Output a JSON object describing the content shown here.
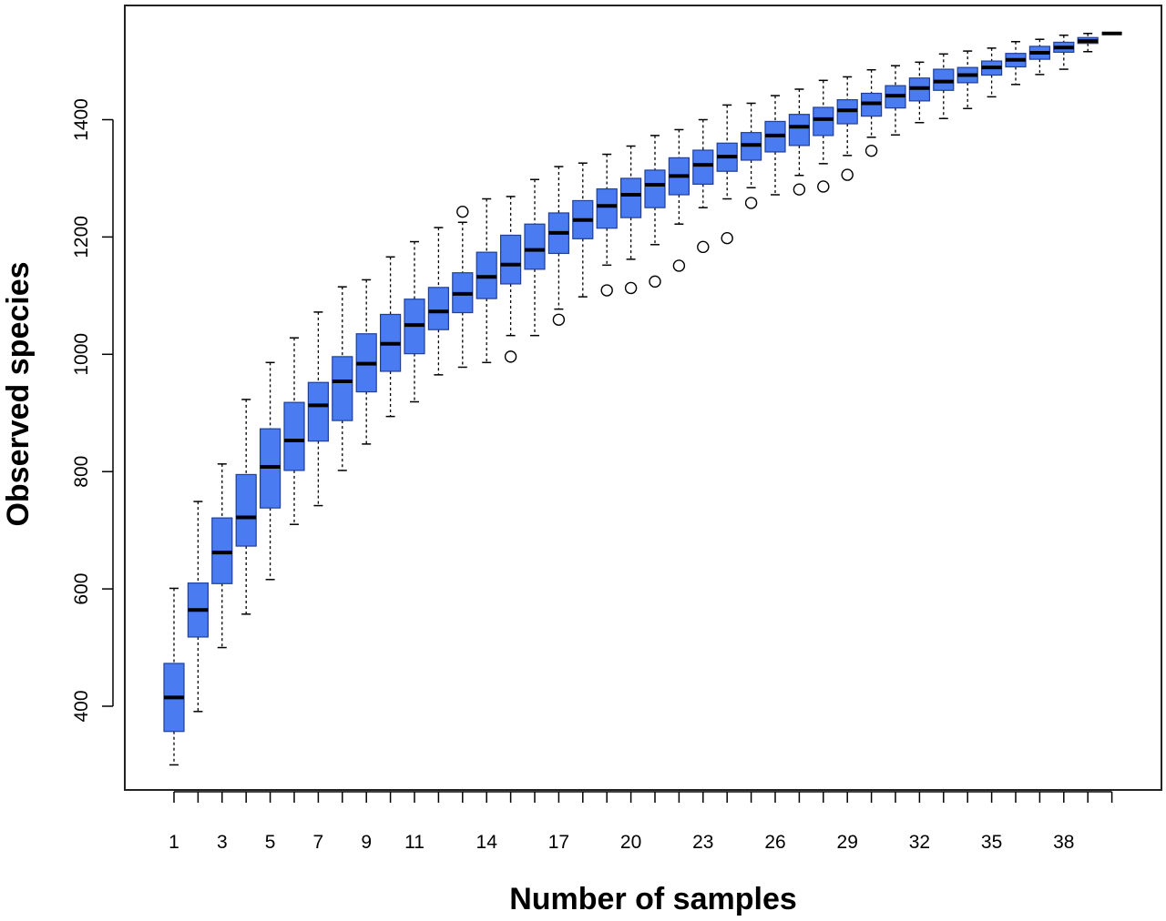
{
  "chart_data": {
    "type": "boxplot",
    "title": "",
    "xlabel": "Number of samples",
    "ylabel": "Observed species",
    "ylim": [
      265,
      1570
    ],
    "x_tick_labels": [
      "1",
      "3",
      "5",
      "7",
      "9",
      "11",
      "14",
      "17",
      "20",
      "23",
      "26",
      "29",
      "32",
      "35",
      "38"
    ],
    "y_tick_labels": [
      "400",
      "600",
      "800",
      "1000",
      "1200",
      "1400"
    ],
    "box_fill": "#4a7bf0",
    "box_stroke": "#1f3f9a",
    "grid": false,
    "legend": "none",
    "boxes": [
      {
        "x": 1,
        "low": 300,
        "q1": 357,
        "median": 415,
        "q3": 473,
        "high": 601,
        "outliers": []
      },
      {
        "x": 2,
        "low": 391,
        "q1": 518,
        "median": 564,
        "q3": 610,
        "high": 749,
        "outliers": []
      },
      {
        "x": 3,
        "low": 500,
        "q1": 609,
        "median": 662,
        "q3": 721,
        "high": 813,
        "outliers": []
      },
      {
        "x": 4,
        "low": 557,
        "q1": 673,
        "median": 722,
        "q3": 795,
        "high": 923,
        "outliers": []
      },
      {
        "x": 5,
        "low": 616,
        "q1": 738,
        "median": 808,
        "q3": 873,
        "high": 986,
        "outliers": []
      },
      {
        "x": 6,
        "low": 710,
        "q1": 802,
        "median": 853,
        "q3": 918,
        "high": 1028,
        "outliers": []
      },
      {
        "x": 7,
        "low": 742,
        "q1": 852,
        "median": 913,
        "q3": 952,
        "high": 1072,
        "outliers": []
      },
      {
        "x": 8,
        "low": 802,
        "q1": 887,
        "median": 954,
        "q3": 996,
        "high": 1115,
        "outliers": []
      },
      {
        "x": 9,
        "low": 847,
        "q1": 936,
        "median": 984,
        "q3": 1035,
        "high": 1127,
        "outliers": []
      },
      {
        "x": 10,
        "low": 894,
        "q1": 971,
        "median": 1018,
        "q3": 1068,
        "high": 1166,
        "outliers": []
      },
      {
        "x": 11,
        "low": 919,
        "q1": 1001,
        "median": 1050,
        "q3": 1094,
        "high": 1192,
        "outliers": []
      },
      {
        "x": 12,
        "low": 965,
        "q1": 1042,
        "median": 1073,
        "q3": 1114,
        "high": 1216,
        "outliers": []
      },
      {
        "x": 13,
        "low": 978,
        "q1": 1071,
        "median": 1103,
        "q3": 1139,
        "high": 1225,
        "outliers": [
          1243
        ]
      },
      {
        "x": 14,
        "low": 986,
        "q1": 1095,
        "median": 1132,
        "q3": 1174,
        "high": 1265,
        "outliers": []
      },
      {
        "x": 15,
        "low": 1032,
        "q1": 1120,
        "median": 1153,
        "q3": 1203,
        "high": 1269,
        "outliers": [
          996
        ]
      },
      {
        "x": 16,
        "low": 1032,
        "q1": 1145,
        "median": 1178,
        "q3": 1222,
        "high": 1298,
        "outliers": []
      },
      {
        "x": 17,
        "low": 1077,
        "q1": 1172,
        "median": 1207,
        "q3": 1241,
        "high": 1320,
        "outliers": [
          1059
        ]
      },
      {
        "x": 18,
        "low": 1098,
        "q1": 1197,
        "median": 1229,
        "q3": 1262,
        "high": 1326,
        "outliers": []
      },
      {
        "x": 19,
        "low": 1152,
        "q1": 1215,
        "median": 1253,
        "q3": 1282,
        "high": 1341,
        "outliers": [
          1109
        ]
      },
      {
        "x": 20,
        "low": 1162,
        "q1": 1233,
        "median": 1272,
        "q3": 1300,
        "high": 1355,
        "outliers": [
          1113
        ]
      },
      {
        "x": 21,
        "low": 1187,
        "q1": 1250,
        "median": 1289,
        "q3": 1314,
        "high": 1373,
        "outliers": [
          1124
        ]
      },
      {
        "x": 22,
        "low": 1222,
        "q1": 1272,
        "median": 1304,
        "q3": 1335,
        "high": 1383,
        "outliers": [
          1151
        ]
      },
      {
        "x": 23,
        "low": 1250,
        "q1": 1290,
        "median": 1323,
        "q3": 1348,
        "high": 1400,
        "outliers": [
          1183
        ]
      },
      {
        "x": 24,
        "low": 1265,
        "q1": 1312,
        "median": 1337,
        "q3": 1360,
        "high": 1425,
        "outliers": [
          1198
        ]
      },
      {
        "x": 25,
        "low": 1284,
        "q1": 1331,
        "median": 1357,
        "q3": 1378,
        "high": 1428,
        "outliers": [
          1258
        ]
      },
      {
        "x": 26,
        "low": 1272,
        "q1": 1345,
        "median": 1373,
        "q3": 1397,
        "high": 1441,
        "outliers": []
      },
      {
        "x": 27,
        "low": 1305,
        "q1": 1356,
        "median": 1388,
        "q3": 1409,
        "high": 1452,
        "outliers": [
          1281
        ]
      },
      {
        "x": 28,
        "low": 1325,
        "q1": 1373,
        "median": 1401,
        "q3": 1421,
        "high": 1467,
        "outliers": [
          1286
        ]
      },
      {
        "x": 29,
        "low": 1339,
        "q1": 1393,
        "median": 1416,
        "q3": 1434,
        "high": 1473,
        "outliers": [
          1306
        ]
      },
      {
        "x": 30,
        "low": 1370,
        "q1": 1406,
        "median": 1428,
        "q3": 1445,
        "high": 1485,
        "outliers": [
          1347
        ]
      },
      {
        "x": 31,
        "low": 1374,
        "q1": 1420,
        "median": 1441,
        "q3": 1458,
        "high": 1492,
        "outliers": []
      },
      {
        "x": 32,
        "low": 1395,
        "q1": 1432,
        "median": 1454,
        "q3": 1471,
        "high": 1498,
        "outliers": []
      },
      {
        "x": 33,
        "low": 1402,
        "q1": 1450,
        "median": 1465,
        "q3": 1486,
        "high": 1512,
        "outliers": []
      },
      {
        "x": 34,
        "low": 1419,
        "q1": 1463,
        "median": 1476,
        "q3": 1489,
        "high": 1517,
        "outliers": []
      },
      {
        "x": 35,
        "low": 1439,
        "q1": 1476,
        "median": 1489,
        "q3": 1500,
        "high": 1522,
        "outliers": []
      },
      {
        "x": 36,
        "low": 1460,
        "q1": 1490,
        "median": 1502,
        "q3": 1513,
        "high": 1533,
        "outliers": []
      },
      {
        "x": 37,
        "low": 1477,
        "q1": 1503,
        "median": 1514,
        "q3": 1525,
        "high": 1537,
        "outliers": []
      },
      {
        "x": 38,
        "low": 1486,
        "q1": 1515,
        "median": 1523,
        "q3": 1532,
        "high": 1544,
        "outliers": []
      },
      {
        "x": 39,
        "low": 1516,
        "q1": 1530,
        "median": 1534,
        "q3": 1540,
        "high": 1547,
        "outliers": []
      },
      {
        "x": 40,
        "low": 1547,
        "q1": 1547,
        "median": 1547,
        "q3": 1547,
        "high": 1547,
        "outliers": []
      }
    ]
  }
}
